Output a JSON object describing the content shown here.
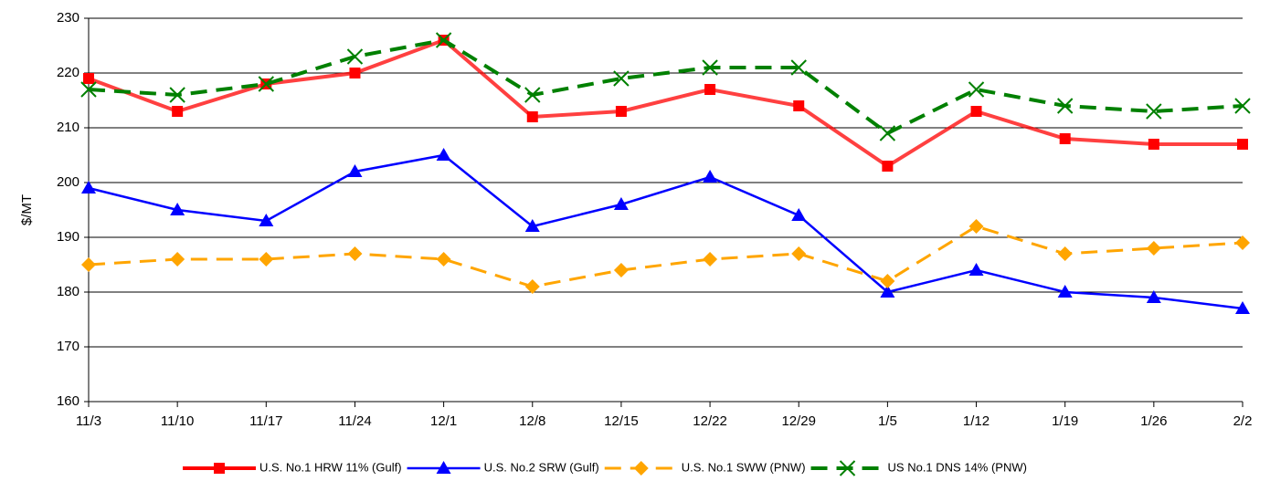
{
  "chart_data": {
    "type": "line",
    "y_label": "$/MT",
    "categories": [
      "11/3",
      "11/10",
      "11/17",
      "11/24",
      "12/1",
      "12/8",
      "12/15",
      "12/22",
      "12/29",
      "1/5",
      "1/12",
      "1/19",
      "1/26",
      "2/2"
    ],
    "series": [
      {
        "name": "U.S. No.1 HRW 11% (Gulf)",
        "color": "#ff0000",
        "marker": "square",
        "dash": false,
        "values": [
          219,
          213,
          218,
          220,
          226,
          212,
          213,
          217,
          214,
          203,
          213,
          208,
          207,
          207
        ]
      },
      {
        "name": "U.S. No.2 SRW (Gulf)",
        "color": "#0000ff",
        "marker": "triangle",
        "dash": false,
        "values": [
          199,
          195,
          193,
          202,
          205,
          192,
          196,
          201,
          194,
          180,
          184,
          180,
          179,
          177
        ]
      },
      {
        "name": "U.S. No.1 SWW (PNW)",
        "color": "#ffa500",
        "marker": "diamond",
        "dash": true,
        "values": [
          185,
          186,
          186,
          187,
          186,
          181,
          184,
          186,
          187,
          182,
          192,
          187,
          188,
          189
        ]
      },
      {
        "name": "US No.1 DNS 14% (PNW)",
        "color": "#008000",
        "marker": "x",
        "dash": true,
        "values": [
          217,
          216,
          218,
          223,
          226,
          216,
          219,
          221,
          221,
          209,
          217,
          214,
          213,
          214
        ]
      }
    ],
    "ylim": [
      160,
      230
    ],
    "yticks": [
      160,
      170,
      180,
      190,
      200,
      210,
      220,
      230
    ],
    "grid": true,
    "legend": "bottom"
  }
}
